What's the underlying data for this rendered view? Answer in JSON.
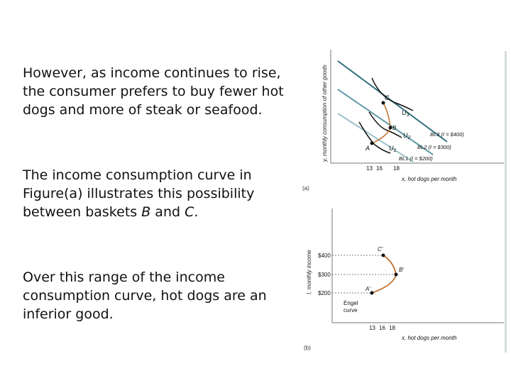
{
  "paragraphs": {
    "p1": "However, as income continues to rise, the consumer prefers to buy fewer hot dogs and more of steak or seafood.",
    "p2_prefix": "The income consumption curve in Figure(a) illustrates this possibility between baskets ",
    "p2_b": "B",
    "p2_mid": " and ",
    "p2_c": "C",
    "p2_suffix": ".",
    "p3": "Over this range of the income consumption curve, hot dogs are an inferior good."
  },
  "figure_a": {
    "panel_label": "(a)",
    "y_axis_label": "y, monthly consumption of other goods",
    "x_axis_label": "x, hot dogs per month",
    "x_ticks": [
      "13",
      "16",
      "18"
    ],
    "points": {
      "a": "A",
      "b": "B",
      "c": "C"
    },
    "curves": {
      "u1": "U",
      "u1_sub": "1",
      "u2": "U",
      "u2_sub": "2",
      "u3": "U",
      "u3_sub": "3"
    },
    "budget_lines": {
      "bl3": "BL3 (I = $400)",
      "bl2": "BL2 (I = $300)",
      "bl1": "BL1 (I = $200)"
    },
    "colors": {
      "budget_dark": "#2e6f7e",
      "budget_mid": "#5f9aa6",
      "budget_light": "#9cc2ca",
      "icc": "#c0702b",
      "indiff": "#111111"
    }
  },
  "figure_b": {
    "panel_label": "(b)",
    "y_axis_label": "I, monthly income",
    "x_axis_label": "x, hot dogs per month",
    "x_ticks": [
      "13",
      "16",
      "18"
    ],
    "y_ticks": [
      "$400",
      "$300",
      "$200"
    ],
    "points": {
      "a": "A'",
      "b": "B'",
      "c": "C'"
    },
    "engel_label_1": "Engel",
    "engel_label_2": "curve",
    "colors": {
      "engel": "#c0702b"
    }
  }
}
